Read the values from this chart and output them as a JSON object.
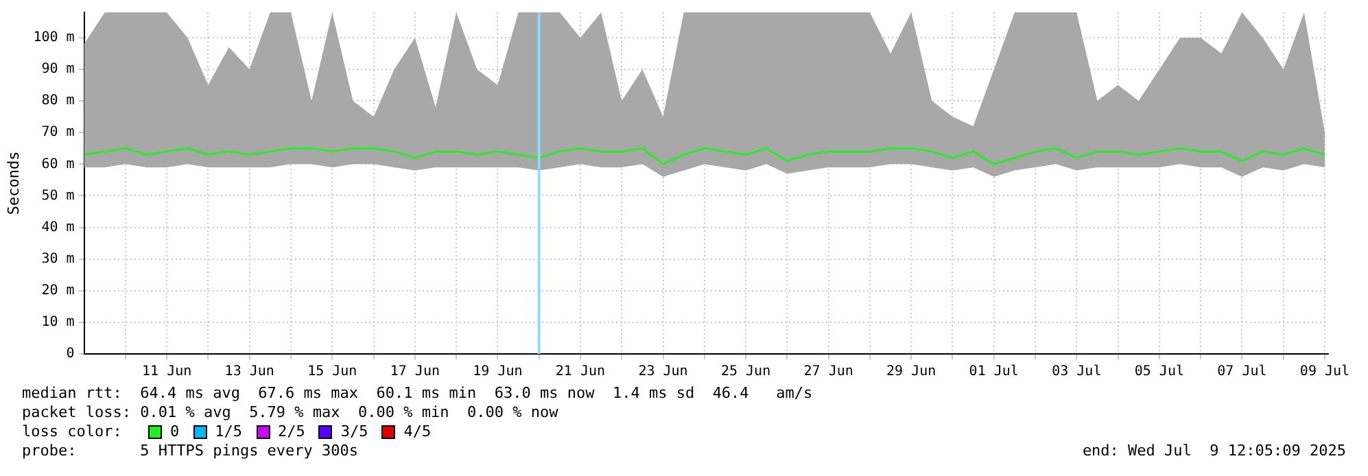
{
  "chart_data": {
    "type": "line",
    "ylabel": "Seconds",
    "x": [
      "2025-06-09T00:00",
      "2025-06-09T12:00",
      "2025-06-10T00:00",
      "2025-06-10T12:00",
      "2025-06-11T00:00",
      "2025-06-11T12:00",
      "2025-06-12T00:00",
      "2025-06-12T12:00",
      "2025-06-13T00:00",
      "2025-06-13T12:00",
      "2025-06-14T00:00",
      "2025-06-14T12:00",
      "2025-06-15T00:00",
      "2025-06-15T12:00",
      "2025-06-16T00:00",
      "2025-06-16T12:00",
      "2025-06-17T00:00",
      "2025-06-17T12:00",
      "2025-06-18T00:00",
      "2025-06-18T12:00",
      "2025-06-19T00:00",
      "2025-06-19T12:00",
      "2025-06-20T00:00",
      "2025-06-20T12:00",
      "2025-06-21T00:00",
      "2025-06-21T12:00",
      "2025-06-22T00:00",
      "2025-06-22T12:00",
      "2025-06-23T00:00",
      "2025-06-23T12:00",
      "2025-06-24T00:00",
      "2025-06-24T12:00",
      "2025-06-25T00:00",
      "2025-06-25T12:00",
      "2025-06-26T00:00",
      "2025-06-26T12:00",
      "2025-06-27T00:00",
      "2025-06-27T12:00",
      "2025-06-28T00:00",
      "2025-06-28T12:00",
      "2025-06-29T00:00",
      "2025-06-29T12:00",
      "2025-06-30T00:00",
      "2025-06-30T12:00",
      "2025-07-01T00:00",
      "2025-07-01T12:00",
      "2025-07-02T00:00",
      "2025-07-02T12:00",
      "2025-07-03T00:00",
      "2025-07-03T12:00",
      "2025-07-04T00:00",
      "2025-07-04T12:00",
      "2025-07-05T00:00",
      "2025-07-05T12:00",
      "2025-07-06T00:00",
      "2025-07-06T12:00",
      "2025-07-07T00:00",
      "2025-07-07T12:00",
      "2025-07-08T00:00",
      "2025-07-08T12:00",
      "2025-07-09T00:00"
    ],
    "series": [
      {
        "color": "#22ee22",
        "values": [
          63,
          64,
          65,
          63,
          64,
          65,
          63,
          64,
          63,
          64,
          65,
          65,
          64,
          65,
          65,
          64,
          62,
          64,
          64,
          63,
          64,
          63,
          62,
          64,
          65,
          64,
          64,
          65,
          60,
          63,
          65,
          64,
          63,
          65,
          61,
          63,
          64,
          64,
          64,
          65,
          65,
          64,
          62,
          64,
          60,
          62,
          64,
          65,
          62,
          64,
          64,
          63,
          64,
          65,
          64,
          64,
          61,
          64,
          63,
          65,
          63
        ],
        "lower": [
          59,
          59,
          60,
          59,
          59,
          60,
          59,
          59,
          59,
          59,
          60,
          60,
          59,
          60,
          60,
          59,
          58,
          59,
          59,
          59,
          59,
          59,
          58,
          59,
          60,
          59,
          59,
          60,
          56,
          58,
          60,
          59,
          58,
          60,
          57,
          58,
          59,
          59,
          59,
          60,
          60,
          59,
          58,
          59,
          56,
          58,
          59,
          60,
          58,
          59,
          59,
          59,
          59,
          60,
          59,
          59,
          56,
          59,
          58,
          60,
          59
        ],
        "upper": [
          98,
          108,
          108,
          108,
          108,
          100,
          85,
          97,
          90,
          108,
          108,
          80,
          108,
          80,
          75,
          90,
          100,
          78,
          108,
          90,
          85,
          108,
          108,
          108,
          100,
          108,
          80,
          90,
          75,
          108,
          108,
          108,
          108,
          108,
          108,
          108,
          108,
          108,
          108,
          95,
          108,
          80,
          75,
          72,
          90,
          108,
          108,
          108,
          108,
          80,
          85,
          80,
          90,
          100,
          100,
          95,
          108,
          100,
          90,
          108,
          70
        ]
      }
    ],
    "xlim": [
      "2025-06-09T00:00",
      "2025-07-09T02:00"
    ],
    "xticks": [
      {
        "value": "2025-06-10",
        "label": null
      },
      {
        "value": "2025-06-11",
        "label": "11 Jun"
      },
      {
        "value": "2025-06-12",
        "label": null
      },
      {
        "value": "2025-06-13",
        "label": "13 Jun"
      },
      {
        "value": "2025-06-14",
        "label": null
      },
      {
        "value": "2025-06-15",
        "label": "15 Jun"
      },
      {
        "value": "2025-06-16",
        "label": null
      },
      {
        "value": "2025-06-17",
        "label": "17 Jun"
      },
      {
        "value": "2025-06-18",
        "label": null
      },
      {
        "value": "2025-06-19",
        "label": "19 Jun"
      },
      {
        "value": "2025-06-20",
        "label": null
      },
      {
        "value": "2025-06-21",
        "label": "21 Jun"
      },
      {
        "value": "2025-06-22",
        "label": null
      },
      {
        "value": "2025-06-23",
        "label": "23 Jun"
      },
      {
        "value": "2025-06-24",
        "label": null
      },
      {
        "value": "2025-06-25",
        "label": "25 Jun"
      },
      {
        "value": "2025-06-26",
        "label": null
      },
      {
        "value": "2025-06-27",
        "label": "27 Jun"
      },
      {
        "value": "2025-06-28",
        "label": null
      },
      {
        "value": "2025-06-29",
        "label": "29 Jun"
      },
      {
        "value": "2025-06-30",
        "label": null
      },
      {
        "value": "2025-07-01",
        "label": "01 Jul"
      },
      {
        "value": "2025-07-02",
        "label": null
      },
      {
        "value": "2025-07-03",
        "label": "03 Jul"
      },
      {
        "value": "2025-07-04",
        "label": null
      },
      {
        "value": "2025-07-05",
        "label": "05 Jul"
      },
      {
        "value": "2025-07-06",
        "label": null
      },
      {
        "value": "2025-07-07",
        "label": "07 Jul"
      },
      {
        "value": "2025-07-08",
        "label": null
      },
      {
        "value": "2025-07-09",
        "label": "09 Jul"
      }
    ],
    "ylim": [
      0,
      108
    ],
    "yticks": [
      0,
      {
        "value": 10,
        "label": "10 m"
      },
      {
        "value": 20,
        "label": "20 m"
      },
      {
        "value": 30,
        "label": "30 m"
      },
      {
        "value": 40,
        "label": "40 m"
      },
      {
        "value": 50,
        "label": "50 m"
      },
      {
        "value": 60,
        "label": "60 m"
      },
      {
        "value": 70,
        "label": "70 m"
      },
      {
        "value": 80,
        "label": "80 m"
      },
      {
        "value": 90,
        "label": "90 m"
      },
      {
        "value": 100,
        "label": "100 m"
      }
    ],
    "ref_lines": [
      {
        "axis": "x",
        "value": "2025-06-20T00:00",
        "color": "#88ddff"
      }
    ],
    "grid": true,
    "annotations": [
      "median rtt:  64.4 ms avg  67.6 ms max  60.1 ms min  63.0 ms now  1.4 ms sd  46.4   am/s",
      "packet loss: 0.01 % avg  5.79 % max  0.00 % min  0.00 % now",
      "loss color:",
      "0",
      "1/5",
      "2/5",
      "3/5",
      "4/5",
      "probe:       5 HTTPS pings every 300s",
      "end: Wed Jul  9 12:05:09 2025"
    ]
  }
}
